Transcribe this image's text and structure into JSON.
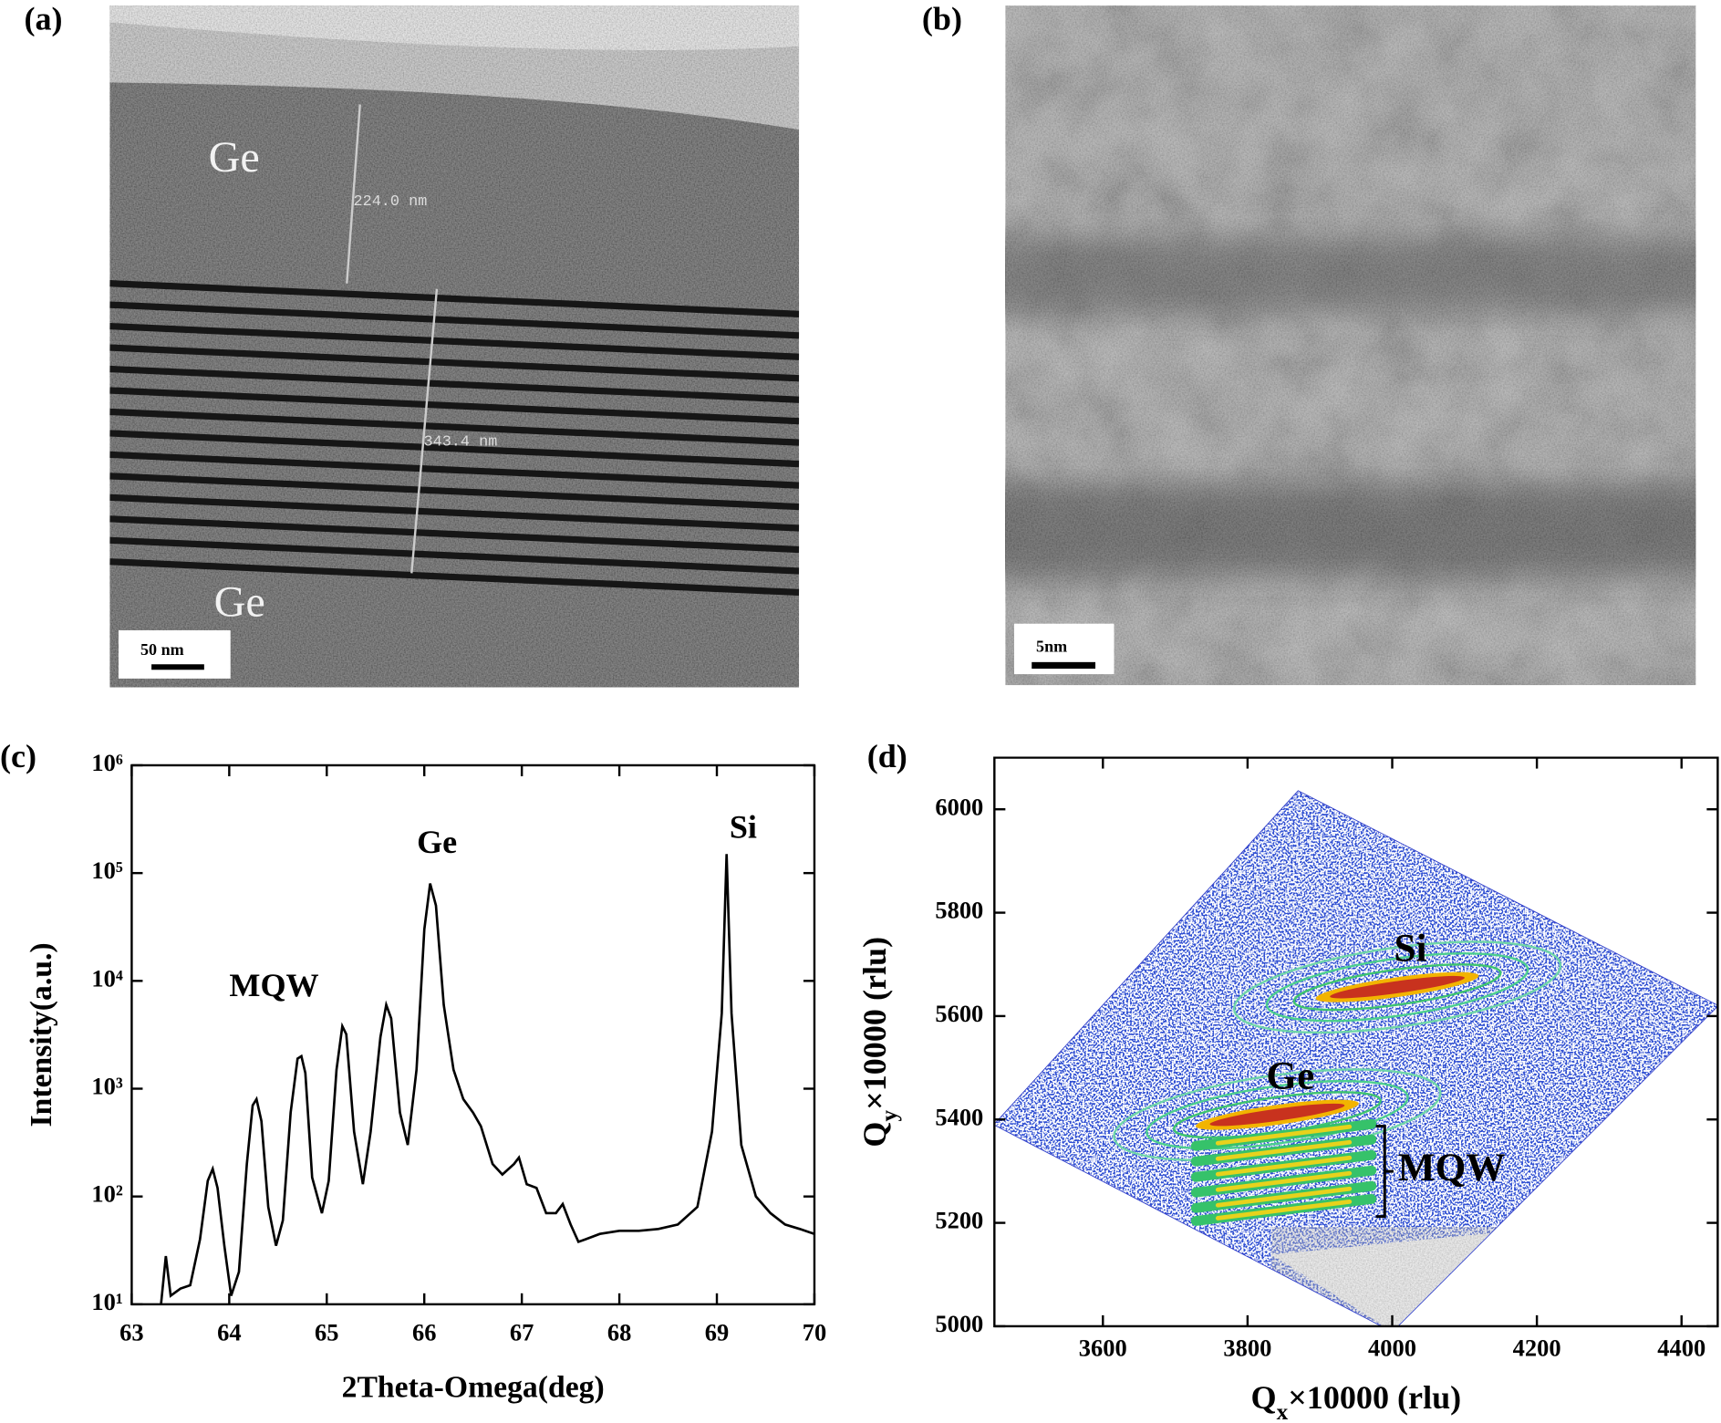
{
  "panels": {
    "a": {
      "label": "(a)",
      "ge_top": "Ge",
      "ge_bottom": "Ge",
      "thickness_ge": "224.0 nm",
      "thickness_mqw": "343.4 nm",
      "scale_bar": "50 nm"
    },
    "b": {
      "label": "(b)",
      "scale_bar": "5nm"
    },
    "c": {
      "label": "(c)"
    },
    "d": {
      "label": "(d)"
    }
  },
  "chart_data": [
    {
      "type": "line",
      "log_y": true,
      "color": "#000000",
      "x": [
        63.3,
        63.35,
        63.4,
        63.5,
        63.6,
        63.7,
        63.78,
        63.83,
        63.88,
        63.95,
        64.02,
        64.1,
        64.18,
        64.24,
        64.28,
        64.33,
        64.4,
        64.48,
        64.55,
        64.63,
        64.7,
        64.74,
        64.78,
        64.85,
        64.95,
        65.02,
        65.1,
        65.16,
        65.2,
        65.28,
        65.37,
        65.45,
        65.55,
        65.61,
        65.66,
        65.75,
        65.83,
        65.92,
        66.0,
        66.06,
        66.12,
        66.2,
        66.3,
        66.4,
        66.5,
        66.58,
        66.7,
        66.8,
        66.92,
        66.97,
        67.05,
        67.15,
        67.25,
        67.35,
        67.42,
        67.5,
        67.58,
        67.65,
        67.8,
        68.0,
        68.2,
        68.4,
        68.6,
        68.8,
        68.95,
        69.05,
        69.1,
        69.15,
        69.25,
        69.4,
        69.55,
        69.7,
        69.85,
        70.0
      ],
      "values": [
        10,
        28,
        12,
        14,
        15,
        40,
        140,
        180,
        120,
        35,
        12,
        20,
        200,
        700,
        800,
        500,
        80,
        35,
        60,
        600,
        1900,
        2000,
        1400,
        150,
        70,
        140,
        1500,
        3800,
        3200,
        400,
        130,
        400,
        3000,
        6000,
        4500,
        600,
        300,
        1500,
        30000,
        80000,
        50000,
        6000,
        1500,
        800,
        600,
        450,
        200,
        160,
        200,
        230,
        130,
        120,
        70,
        70,
        85,
        55,
        38,
        40,
        45,
        48,
        48,
        50,
        55,
        80,
        400,
        5000,
        150000,
        5000,
        300,
        100,
        70,
        55,
        50,
        45
      ],
      "xlim": [
        63,
        70
      ],
      "ylim": [
        10,
        1000000
      ],
      "xticks": [
        63,
        64,
        65,
        66,
        67,
        68,
        69,
        70
      ],
      "yticks": [
        {
          "value": 10,
          "label": "10¹"
        },
        {
          "value": 100,
          "label": "10²"
        },
        {
          "value": 1000,
          "label": "10³"
        },
        {
          "value": 10000,
          "label": "10⁴"
        },
        {
          "value": 100000,
          "label": "10⁵"
        },
        {
          "value": 1000000,
          "label": "10⁶"
        }
      ],
      "x_label": "2Theta-Omega(deg)",
      "y_label": "Intensity(a.u.)",
      "annotations": [
        {
          "text": "MQW",
          "x": 64.46,
          "y": 8500
        },
        {
          "text": "Ge",
          "x": 66.13,
          "y": 180000
        },
        {
          "text": "Si",
          "x": 69.27,
          "y": 250000
        }
      ]
    },
    {
      "type": "map",
      "xlim": [
        3450,
        4450
      ],
      "ylim": [
        5000,
        6100
      ],
      "xticks": [
        3600,
        3800,
        4000,
        4200,
        4400
      ],
      "yticks": [
        5000,
        5200,
        5400,
        5600,
        5800,
        6000
      ],
      "x_label": {
        "main": "Q",
        "sub": "x",
        "rest": "×10000 (rlu)"
      },
      "y_label": {
        "main": "Q",
        "sub": "y",
        "rest": "×10000 (rlu)"
      },
      "scan_region": {
        "qx": [
          3450,
          3870,
          4450,
          4000
        ],
        "qy": [
          5390,
          6035,
          5620,
          4990
        ]
      },
      "peaks": [
        {
          "label": "Si",
          "qx": 4007,
          "qy": 5656
        },
        {
          "label": "Ge",
          "qx": 3841,
          "qy": 5409
        }
      ],
      "mqw": {
        "label": "MQW",
        "qx": 3850,
        "qy": [
          5370,
          5340,
          5310,
          5280,
          5250,
          5225
        ]
      }
    }
  ]
}
